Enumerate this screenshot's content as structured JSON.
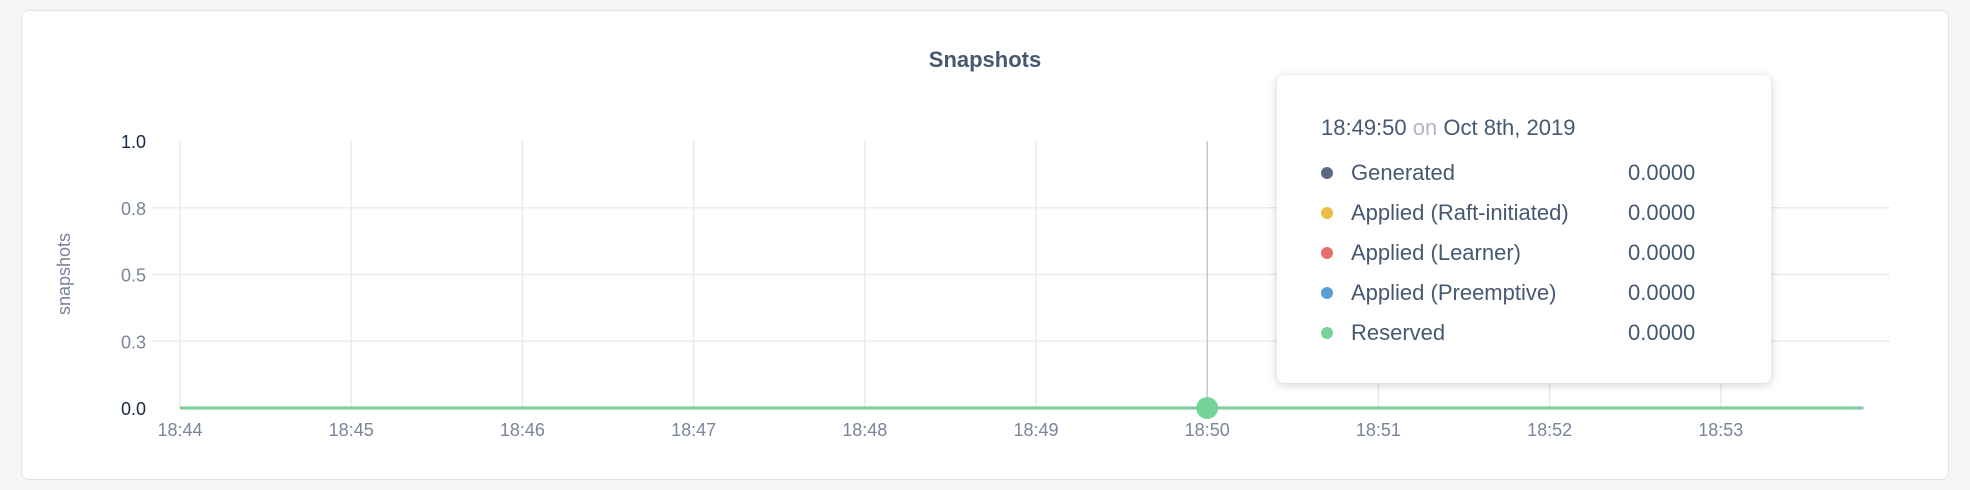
{
  "chart_data": {
    "type": "line",
    "title": "Snapshots",
    "ylabel": "snapshots",
    "xlabel": "",
    "ylim": [
      0,
      1
    ],
    "y_ticks": [
      {
        "value": 0,
        "label": "0.0"
      },
      {
        "value": 0.25,
        "label": "0.3"
      },
      {
        "value": 0.5,
        "label": "0.5"
      },
      {
        "value": 0.75,
        "label": "0.8"
      },
      {
        "value": 1,
        "label": "1.0"
      }
    ],
    "x_ticks": [
      "18:44",
      "18:45",
      "18:46",
      "18:47",
      "18:48",
      "18:49",
      "18:50",
      "18:51",
      "18:52",
      "18:53"
    ],
    "x_range": [
      "18:44",
      "18:53:50"
    ],
    "grid": true,
    "series": [
      {
        "name": "Generated",
        "color": "#5a6a85",
        "values": [
          0,
          0,
          0,
          0,
          0,
          0,
          0,
          0,
          0,
          0,
          0
        ]
      },
      {
        "name": "Applied (Raft-initiated)",
        "color": "#e9bd48",
        "values": [
          0,
          0,
          0,
          0,
          0,
          0,
          0,
          0,
          0,
          0,
          0
        ]
      },
      {
        "name": "Applied (Learner)",
        "color": "#e36e6a",
        "values": [
          0,
          0,
          0,
          0,
          0,
          0,
          0,
          0,
          0,
          0,
          0
        ]
      },
      {
        "name": "Applied (Preemptive)",
        "color": "#5b9ed4",
        "values": [
          0,
          0,
          0,
          0,
          0,
          0,
          0,
          0,
          0,
          0,
          0
        ]
      },
      {
        "name": "Reserved",
        "color": "#75d39a",
        "values": [
          0,
          0,
          0,
          0,
          0,
          0,
          0,
          0,
          0,
          0,
          0
        ]
      }
    ],
    "x": [
      "18:44",
      "18:45",
      "18:46",
      "18:47",
      "18:48",
      "18:49",
      "18:50",
      "18:51",
      "18:52",
      "18:53",
      "18:53:50"
    ]
  },
  "tooltip": {
    "time": "18:49:50",
    "on": "on",
    "date": "Oct 8th, 2019",
    "rows": [
      {
        "label": "Generated",
        "value": "0.0000",
        "color": "#5a6a85"
      },
      {
        "label": "Applied (Raft-initiated)",
        "value": "0.0000",
        "color": "#e9bd48"
      },
      {
        "label": "Applied (Learner)",
        "value": "0.0000",
        "color": "#e36e6a"
      },
      {
        "label": "Applied (Preemptive)",
        "value": "0.0000",
        "color": "#5b9ed4"
      },
      {
        "label": "Reserved",
        "value": "0.0000",
        "color": "#75d39a"
      }
    ]
  }
}
